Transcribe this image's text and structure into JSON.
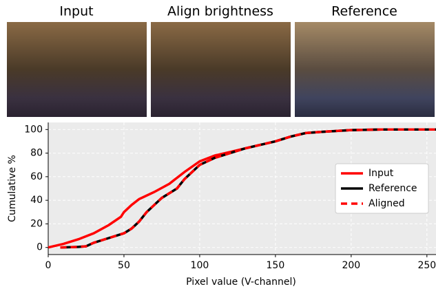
{
  "panels": [
    "Input",
    "Align brightness",
    "Reference"
  ],
  "chart_data": {
    "type": "line",
    "xlabel": "Pixel value (V-channel)",
    "ylabel": "Cumulative %",
    "xlim": [
      0,
      256
    ],
    "ylim": [
      -6,
      106
    ],
    "xticks": [
      0,
      50,
      100,
      150,
      200,
      250
    ],
    "yticks": [
      0,
      20,
      40,
      60,
      80,
      100
    ],
    "grid": true,
    "legend": "right",
    "series": [
      {
        "name": "Input",
        "color": "#ff0000",
        "linestyle": "solid",
        "x": [
          0,
          10,
          20,
          30,
          40,
          48,
          50,
          55,
          60,
          70,
          80,
          90,
          100,
          110,
          120,
          130,
          140,
          150,
          160,
          170,
          180,
          200,
          220,
          256
        ],
        "values": [
          0,
          3,
          7,
          12,
          19,
          26,
          30,
          36,
          41,
          47,
          54,
          64,
          73,
          78,
          81,
          84,
          87,
          90,
          94,
          97,
          98,
          99.5,
          100,
          100
        ]
      },
      {
        "name": "Reference",
        "color": "#000000",
        "linestyle": "solid",
        "x": [
          8,
          20,
          25,
          30,
          40,
          50,
          55,
          60,
          65,
          70,
          75,
          80,
          85,
          90,
          100,
          110,
          120,
          130,
          140,
          150,
          160,
          170,
          180,
          200,
          220,
          256
        ],
        "values": [
          0,
          0.5,
          1,
          4,
          8,
          12,
          16,
          22,
          30,
          36,
          42,
          46,
          50,
          58,
          70,
          76,
          80,
          84,
          87,
          90,
          94,
          97,
          98,
          99.5,
          100,
          100
        ]
      },
      {
        "name": "Aligned",
        "color": "#ff0000",
        "linestyle": "dashed",
        "x": [
          8,
          20,
          25,
          30,
          40,
          50,
          55,
          60,
          65,
          70,
          75,
          80,
          85,
          90,
          100,
          110,
          120,
          130,
          140,
          150,
          160,
          170,
          180,
          200,
          220,
          256
        ],
        "values": [
          0,
          0.5,
          1,
          4,
          8,
          12,
          16,
          22,
          30,
          36,
          42,
          46,
          50,
          58,
          70,
          76,
          80,
          84,
          87,
          90,
          94,
          97,
          98,
          99.5,
          100,
          100
        ]
      }
    ]
  }
}
